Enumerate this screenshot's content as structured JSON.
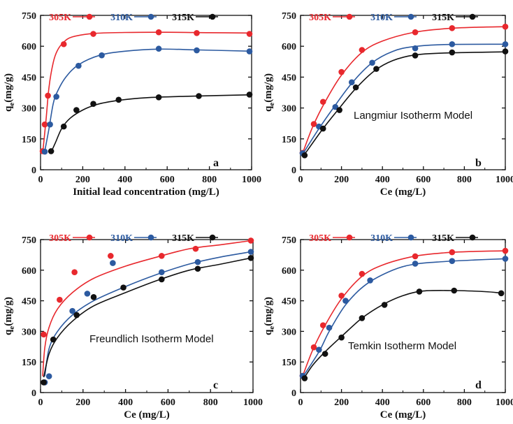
{
  "figure": {
    "y_label_main": "q",
    "y_label_sub": "e",
    "y_label_tail": "(mg/g)"
  },
  "chart_data": [
    {
      "type": "line",
      "panel": "a",
      "title": "",
      "annotation": "",
      "xlabel": "Initial lead concentration (mg/L)",
      "xlim": [
        0,
        1000
      ],
      "ylim": [
        0,
        750
      ],
      "xticks": [
        0,
        200,
        400,
        600,
        800,
        1000
      ],
      "yticks": [
        0,
        150,
        300,
        450,
        600,
        750
      ],
      "legend_position": "top",
      "series": [
        {
          "name": "305K",
          "color": "#e8282d",
          "line": [
            [
              10,
              80
            ],
            [
              25,
              230
            ],
            [
              40,
              400
            ],
            [
              60,
              520
            ],
            [
              80,
              580
            ],
            [
              110,
              620
            ],
            [
              150,
              645
            ],
            [
              250,
              662
            ],
            [
              400,
              667
            ],
            [
              600,
              668
            ],
            [
              800,
              666
            ],
            [
              1000,
              664
            ]
          ],
          "points": [
            [
              10,
              90
            ],
            [
              20,
              220
            ],
            [
              35,
              360
            ],
            [
              110,
              610
            ],
            [
              250,
              660
            ],
            [
              560,
              668
            ],
            [
              740,
              664
            ],
            [
              990,
              660
            ]
          ]
        },
        {
          "name": "310K",
          "color": "#2c5aa0",
          "line": [
            [
              20,
              90
            ],
            [
              40,
              200
            ],
            [
              60,
              320
            ],
            [
              80,
              380
            ],
            [
              120,
              450
            ],
            [
              180,
              510
            ],
            [
              280,
              556
            ],
            [
              400,
              576
            ],
            [
              560,
              586
            ],
            [
              750,
              582
            ],
            [
              1000,
              576
            ]
          ],
          "points": [
            [
              20,
              88
            ],
            [
              45,
              220
            ],
            [
              75,
              355
            ],
            [
              180,
              505
            ],
            [
              290,
              556
            ],
            [
              560,
              588
            ],
            [
              740,
              580
            ],
            [
              990,
              575
            ]
          ]
        },
        {
          "name": "315K",
          "color": "#111111",
          "line": [
            [
              50,
              85
            ],
            [
              70,
              130
            ],
            [
              100,
              200
            ],
            [
              140,
              250
            ],
            [
              200,
              290
            ],
            [
              270,
              318
            ],
            [
              370,
              337
            ],
            [
              500,
              350
            ],
            [
              700,
              357
            ],
            [
              1000,
              364
            ]
          ],
          "points": [
            [
              50,
              90
            ],
            [
              110,
              210
            ],
            [
              170,
              290
            ],
            [
              250,
              320
            ],
            [
              370,
              340
            ],
            [
              560,
              352
            ],
            [
              750,
              358
            ],
            [
              990,
              365
            ]
          ]
        }
      ]
    },
    {
      "type": "line",
      "panel": "b",
      "title": "",
      "annotation": "Langmiur Isotherm Model",
      "xlabel": "Ce (mg/L)",
      "xlim": [
        0,
        1000
      ],
      "ylim": [
        0,
        750
      ],
      "xticks": [
        0,
        200,
        400,
        600,
        800,
        1000
      ],
      "yticks": [
        0,
        150,
        300,
        450,
        600,
        750
      ],
      "legend_position": "top",
      "series": [
        {
          "name": "305K",
          "color": "#e8282d",
          "line": [
            [
              10,
              80
            ],
            [
              60,
              210
            ],
            [
              120,
              330
            ],
            [
              200,
              460
            ],
            [
              300,
              570
            ],
            [
              400,
              625
            ],
            [
              550,
              667
            ],
            [
              700,
              685
            ],
            [
              850,
              692
            ],
            [
              1000,
              695
            ]
          ],
          "points": [
            [
              10,
              82
            ],
            [
              65,
              222
            ],
            [
              110,
              330
            ],
            [
              200,
              475
            ],
            [
              300,
              582
            ],
            [
              560,
              668
            ],
            [
              740,
              688
            ],
            [
              1000,
              695
            ]
          ]
        },
        {
          "name": "310K",
          "color": "#2c5aa0",
          "line": [
            [
              10,
              75
            ],
            [
              90,
              200
            ],
            [
              160,
              300
            ],
            [
              250,
              420
            ],
            [
              350,
              520
            ],
            [
              450,
              575
            ],
            [
              550,
              598
            ],
            [
              700,
              608
            ],
            [
              1000,
              610
            ]
          ],
          "points": [
            [
              10,
              80
            ],
            [
              90,
              210
            ],
            [
              170,
              305
            ],
            [
              250,
              425
            ],
            [
              350,
              520
            ],
            [
              560,
              590
            ],
            [
              740,
              610
            ],
            [
              1000,
              610
            ]
          ]
        },
        {
          "name": "315K",
          "color": "#111111",
          "line": [
            [
              20,
              75
            ],
            [
              110,
              200
            ],
            [
              190,
              300
            ],
            [
              270,
              395
            ],
            [
              360,
              480
            ],
            [
              450,
              530
            ],
            [
              560,
              558
            ],
            [
              700,
              567
            ],
            [
              1000,
              573
            ]
          ],
          "points": [
            [
              20,
              70
            ],
            [
              110,
              200
            ],
            [
              190,
              290
            ],
            [
              270,
              400
            ],
            [
              370,
              490
            ],
            [
              560,
              555
            ],
            [
              740,
              570
            ],
            [
              1000,
              575
            ]
          ]
        }
      ]
    },
    {
      "type": "line",
      "panel": "c",
      "title": "",
      "annotation": "Freundlich Isotherm Model",
      "xlabel": "Ce (mg/L)",
      "xlim": [
        0,
        1000
      ],
      "ylim": [
        0,
        750
      ],
      "xticks": [
        0,
        200,
        400,
        600,
        800,
        1000
      ],
      "yticks": [
        0,
        150,
        300,
        450,
        600,
        750
      ],
      "legend_position": "top",
      "series": [
        {
          "name": "305K",
          "color": "#e8282d",
          "line": [
            [
              10,
              80
            ],
            [
              20,
              220
            ],
            [
              40,
              320
            ],
            [
              80,
              410
            ],
            [
              150,
              490
            ],
            [
              250,
              560
            ],
            [
              400,
              620
            ],
            [
              550,
              665
            ],
            [
              700,
              705
            ],
            [
              850,
              725
            ],
            [
              990,
              745
            ]
          ],
          "points": [
            [
              15,
              285
            ],
            [
              90,
              455
            ],
            [
              160,
              590
            ],
            [
              330,
              670
            ],
            [
              570,
              670
            ],
            [
              730,
              705
            ],
            [
              990,
              745
            ]
          ]
        },
        {
          "name": "310K",
          "color": "#2c5aa0",
          "line": [
            [
              20,
              80
            ],
            [
              40,
              215
            ],
            [
              80,
              300
            ],
            [
              150,
              380
            ],
            [
              250,
              450
            ],
            [
              400,
              520
            ],
            [
              550,
              580
            ],
            [
              700,
              630
            ],
            [
              850,
              665
            ],
            [
              990,
              690
            ]
          ],
          "points": [
            [
              20,
              50
            ],
            [
              40,
              80
            ],
            [
              150,
              400
            ],
            [
              220,
              485
            ],
            [
              340,
              635
            ],
            [
              570,
              590
            ],
            [
              740,
              640
            ],
            [
              990,
              690
            ]
          ]
        },
        {
          "name": "315K",
          "color": "#111111",
          "line": [
            [
              15,
              75
            ],
            [
              40,
              190
            ],
            [
              80,
              270
            ],
            [
              150,
              350
            ],
            [
              250,
              425
            ],
            [
              400,
              490
            ],
            [
              550,
              550
            ],
            [
              700,
              600
            ],
            [
              850,
              630
            ],
            [
              990,
              660
            ]
          ],
          "points": [
            [
              15,
              50
            ],
            [
              60,
              260
            ],
            [
              170,
              380
            ],
            [
              250,
              468
            ],
            [
              390,
              515
            ],
            [
              570,
              555
            ],
            [
              740,
              607
            ],
            [
              990,
              660
            ]
          ]
        }
      ]
    },
    {
      "type": "line",
      "panel": "d",
      "title": "",
      "annotation": "Temkin Isotherm Model",
      "xlabel": "Ce (mg/L)",
      "xlim": [
        0,
        1000
      ],
      "ylim": [
        0,
        750
      ],
      "xticks": [
        0,
        200,
        400,
        600,
        800,
        1000
      ],
      "yticks": [
        0,
        150,
        300,
        450,
        600,
        750
      ],
      "legend_position": "top",
      "series": [
        {
          "name": "305K",
          "color": "#e8282d",
          "line": [
            [
              10,
              80
            ],
            [
              60,
              210
            ],
            [
              120,
              330
            ],
            [
              200,
              460
            ],
            [
              300,
              570
            ],
            [
              400,
              625
            ],
            [
              550,
              667
            ],
            [
              700,
              685
            ],
            [
              850,
              692
            ],
            [
              1000,
              695
            ]
          ],
          "points": [
            [
              10,
              82
            ],
            [
              65,
              222
            ],
            [
              110,
              330
            ],
            [
              200,
              475
            ],
            [
              300,
              582
            ],
            [
              560,
              668
            ],
            [
              740,
              688
            ],
            [
              1000,
              695
            ]
          ]
        },
        {
          "name": "310K",
          "color": "#2c5aa0",
          "line": [
            [
              10,
              75
            ],
            [
              90,
              200
            ],
            [
              140,
              300
            ],
            [
              220,
              430
            ],
            [
              320,
              530
            ],
            [
              450,
              600
            ],
            [
              560,
              630
            ],
            [
              700,
              642
            ],
            [
              850,
              650
            ],
            [
              1000,
              656
            ]
          ],
          "points": [
            [
              10,
              82
            ],
            [
              90,
              210
            ],
            [
              140,
              318
            ],
            [
              220,
              450
            ],
            [
              340,
              550
            ],
            [
              560,
              632
            ],
            [
              740,
              645
            ],
            [
              1000,
              656
            ]
          ]
        },
        {
          "name": "315K",
          "color": "#111111",
          "line": [
            [
              20,
              75
            ],
            [
              60,
              135
            ],
            [
              120,
              200
            ],
            [
              200,
              275
            ],
            [
              300,
              365
            ],
            [
              400,
              430
            ],
            [
              500,
              475
            ],
            [
              600,
              498
            ],
            [
              750,
              500
            ],
            [
              900,
              495
            ],
            [
              980,
              488
            ]
          ],
          "points": [
            [
              20,
              70
            ],
            [
              120,
              190
            ],
            [
              200,
              270
            ],
            [
              300,
              365
            ],
            [
              410,
              430
            ],
            [
              580,
              495
            ],
            [
              750,
              500
            ],
            [
              980,
              487
            ]
          ]
        }
      ]
    }
  ]
}
